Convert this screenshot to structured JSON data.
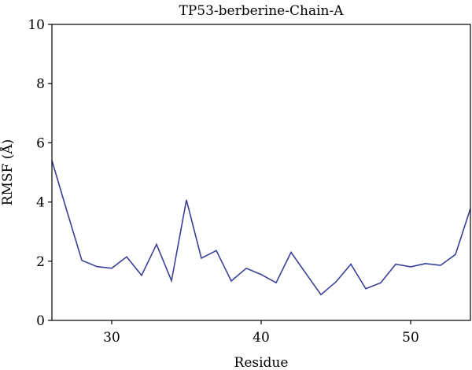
{
  "chart_data": {
    "type": "line",
    "title": "TP53-berberine-Chain-A",
    "xlabel": "Residue",
    "ylabel": "RMSF (Å)",
    "xlim": [
      26,
      54
    ],
    "ylim": [
      0,
      10
    ],
    "xticks": [
      30,
      40,
      50
    ],
    "yticks": [
      0,
      2,
      4,
      6,
      8,
      10
    ],
    "grid": false,
    "line_color": "#3a3f98",
    "x": [
      26,
      27,
      28,
      29,
      30,
      31,
      32,
      33,
      34,
      35,
      36,
      37,
      38,
      39,
      40,
      41,
      42,
      43,
      44,
      45,
      46,
      47,
      48,
      49,
      50,
      51,
      52,
      53,
      54
    ],
    "y": [
      5.4,
      3.7,
      2.03,
      1.82,
      1.76,
      2.15,
      1.52,
      2.57,
      1.34,
      4.07,
      2.1,
      2.36,
      1.33,
      1.76,
      1.55,
      1.27,
      2.3,
      1.58,
      0.87,
      1.3,
      1.9,
      1.07,
      1.27,
      1.9,
      1.81,
      1.92,
      1.86,
      2.23,
      3.78
    ]
  }
}
